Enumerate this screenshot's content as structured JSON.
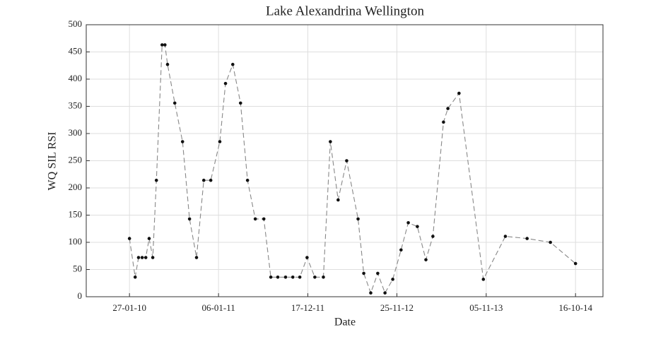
{
  "chart_data": {
    "type": "line",
    "title": "Lake Alexandrina Wellington",
    "x_label": "Date",
    "y_label": "WQ SIL RSI",
    "x": [
      "2010-01-27",
      "2010-02-18",
      "2010-03-03",
      "2010-03-17",
      "2010-03-31",
      "2010-04-13",
      "2010-04-27",
      "2010-05-11",
      "2010-06-02",
      "2010-06-13",
      "2010-06-23",
      "2010-07-21",
      "2010-08-20",
      "2010-09-16",
      "2010-10-13",
      "2010-11-10",
      "2010-12-07",
      "2011-01-11",
      "2011-02-02",
      "2011-03-02",
      "2011-04-01",
      "2011-04-28",
      "2011-05-28",
      "2011-06-30",
      "2011-07-27",
      "2011-08-23",
      "2011-09-22",
      "2011-10-20",
      "2011-11-16",
      "2011-12-14",
      "2012-01-13",
      "2012-02-15",
      "2012-03-13",
      "2012-04-12",
      "2012-05-15",
      "2012-06-28",
      "2012-07-20",
      "2012-08-16",
      "2012-09-12",
      "2012-10-10",
      "2012-11-09",
      "2012-12-11",
      "2013-01-08",
      "2013-02-12",
      "2013-03-17",
      "2013-04-13",
      "2013-05-24",
      "2013-06-10",
      "2013-07-23",
      "2013-10-25",
      "2014-01-18",
      "2014-04-12",
      "2014-07-11",
      "2014-10-16"
    ],
    "series": [
      {
        "name": "WQ SIL RSI",
        "color": "#888888",
        "marker_color": "#111111",
        "values": [
          107,
          36,
          72,
          72,
          72,
          107,
          72,
          214,
          463,
          463,
          427,
          356,
          285,
          143,
          72,
          214,
          214,
          285,
          392,
          427,
          356,
          214,
          143,
          143,
          36,
          36,
          36,
          36,
          36,
          72,
          36,
          36,
          285,
          178,
          250,
          143,
          43,
          7,
          43,
          7,
          32,
          86,
          136,
          129,
          68,
          111,
          321,
          346,
          374,
          32,
          111,
          107,
          100,
          61
        ]
      }
    ],
    "xlim": [
      "2009-08-13",
      "2015-01-30"
    ],
    "xticks": [
      {
        "value": "2010-01-27",
        "label": "27-01-10"
      },
      {
        "value": "2011-01-06",
        "label": "06-01-11"
      },
      {
        "value": "2011-12-17",
        "label": "17-12-11"
      },
      {
        "value": "2012-11-25",
        "label": "25-11-12"
      },
      {
        "value": "2013-11-05",
        "label": "05-11-13"
      },
      {
        "value": "2014-10-16",
        "label": "16-10-14"
      }
    ],
    "ylim": [
      0,
      500
    ],
    "yticks": [
      0,
      50,
      100,
      150,
      200,
      250,
      300,
      350,
      400,
      450,
      500
    ],
    "grid": true
  }
}
